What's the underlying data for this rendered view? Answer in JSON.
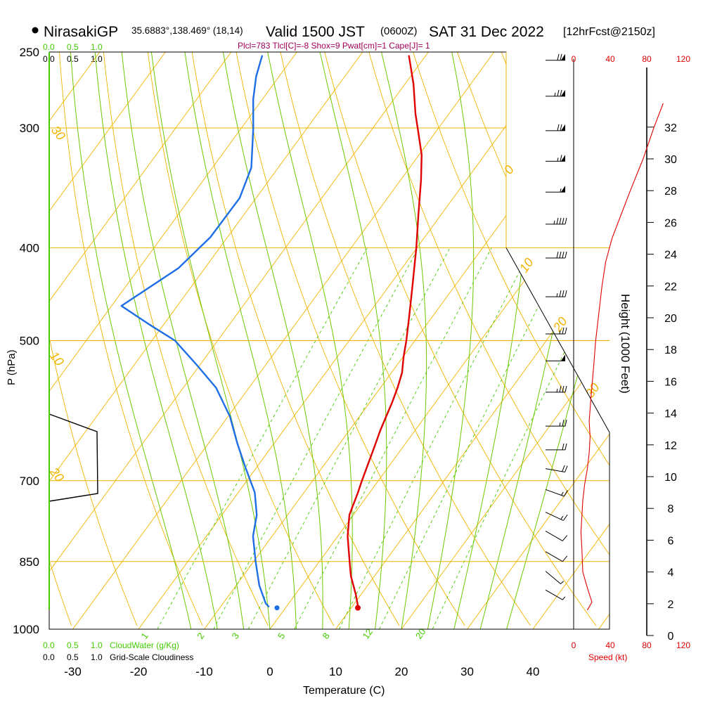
{
  "colors": {
    "orange": "#f0b400",
    "green": "#6cc800",
    "lightgreen": "#44cc00",
    "red": "#e00000",
    "blue": "#1e6ee6",
    "maroon": "#a0005a",
    "black": "#000000"
  },
  "header": {
    "station": "NirasakiGP",
    "coords": "35.6883°,138.469° (18,14)",
    "valid_prefix": "Valid 1500 JST",
    "valid_z": "(0600Z)",
    "valid_date": "SAT 31 Dec 2022",
    "forecast": "[12hrFcst@2150z]",
    "indices": "Plcl=783 Tlcl[C]=-8 Shox=9 Pwat[cm]=1 Cape[J]= 1"
  },
  "labels": {
    "pressure_axis": "P (hPa)",
    "temperature_axis": "Temperature (C)",
    "height_axis": "Height (1000 Feet)",
    "cloudwater": "CloudWater (g/Kg)",
    "cloudiness": "Grid-Scale Cloudiness",
    "speed": "Speed (kt)",
    "cw_ticks": [
      "0.0",
      "0.5",
      "1.0"
    ],
    "cloud_ticks": [
      "0.0",
      "0.5",
      "1.0"
    ]
  },
  "chart_data": {
    "type": "skew-t",
    "pressure_levels": [
      250,
      300,
      400,
      500,
      700,
      850,
      1000
    ],
    "temperature_ticks": [
      -30,
      -20,
      -10,
      0,
      10,
      20,
      30,
      40
    ],
    "height_ticks_kft": [
      0,
      2,
      4,
      6,
      8,
      10,
      12,
      14,
      16,
      18,
      20,
      22,
      24,
      26,
      28,
      30,
      32
    ],
    "speed_ticks_kt": [
      0,
      40,
      80,
      120
    ],
    "isotherm_labels": [
      -30,
      -20,
      -10,
      0,
      10,
      20,
      30
    ],
    "mixing_ratio_labels": [
      "1",
      "2",
      "3",
      "5",
      "8",
      "12",
      "20"
    ],
    "temperature_profile": [
      {
        "p": 949,
        "t": 11.0
      },
      {
        "p": 920,
        "t": 9.2
      },
      {
        "p": 880,
        "t": 6.4
      },
      {
        "p": 850,
        "t": 4.6
      },
      {
        "p": 800,
        "t": 1.5
      },
      {
        "p": 760,
        "t": -0.6
      },
      {
        "p": 720,
        "t": -1.8
      },
      {
        "p": 700,
        "t": -2.5
      },
      {
        "p": 650,
        "t": -4.2
      },
      {
        "p": 620,
        "t": -5.3
      },
      {
        "p": 580,
        "t": -6.6
      },
      {
        "p": 560,
        "t": -7.4
      },
      {
        "p": 540,
        "t": -8.4
      },
      {
        "p": 520,
        "t": -9.9
      },
      {
        "p": 500,
        "t": -11.3
      },
      {
        "p": 470,
        "t": -13.7
      },
      {
        "p": 440,
        "t": -16.3
      },
      {
        "p": 400,
        "t": -20.1
      },
      {
        "p": 370,
        "t": -23.4
      },
      {
        "p": 340,
        "t": -26.9
      },
      {
        "p": 320,
        "t": -29.6
      },
      {
        "p": 300,
        "t": -33.2
      },
      {
        "p": 290,
        "t": -35.1
      },
      {
        "p": 270,
        "t": -38.7
      },
      {
        "p": 252,
        "t": -42.6
      }
    ],
    "dewpoint_profile": [
      {
        "p": 948,
        "t": -2.6
      },
      {
        "p": 940,
        "t": -3.5
      },
      {
        "p": 900,
        "t": -6.5
      },
      {
        "p": 850,
        "t": -9.7
      },
      {
        "p": 800,
        "t": -12.9
      },
      {
        "p": 760,
        "t": -14.7
      },
      {
        "p": 720,
        "t": -17.5
      },
      {
        "p": 680,
        "t": -21.5
      },
      {
        "p": 640,
        "t": -25.6
      },
      {
        "p": 600,
        "t": -29.7
      },
      {
        "p": 560,
        "t": -35.0
      },
      {
        "p": 530,
        "t": -40.5
      },
      {
        "p": 500,
        "t": -46.5
      },
      {
        "p": 480,
        "t": -52.5
      },
      {
        "p": 460,
        "t": -58.5
      },
      {
        "p": 420,
        "t": -54.0
      },
      {
        "p": 390,
        "t": -52.6
      },
      {
        "p": 355,
        "t": -52.5
      },
      {
        "p": 330,
        "t": -54.1
      },
      {
        "p": 300,
        "t": -58.2
      },
      {
        "p": 280,
        "t": -61.4
      },
      {
        "p": 265,
        "t": -63.5
      },
      {
        "p": 252,
        "t": -64.9
      }
    ],
    "surface": {
      "p": 950,
      "t": 11.0,
      "td": -1.3
    },
    "cloudwater_gkg": [],
    "cloud_fraction": [
      {
        "p": 640,
        "value": 0.0
      },
      {
        "p": 660,
        "value": 1.0
      },
      {
        "p": 720,
        "value": 1.0
      },
      {
        "p": 740,
        "value": 0.0
      }
    ],
    "wind_profile_kt": [
      {
        "kft": 1.6,
        "speed": 15
      },
      {
        "kft": 2.1,
        "speed": 20
      },
      {
        "kft": 3.0,
        "speed": 15
      },
      {
        "kft": 4.0,
        "speed": 10
      },
      {
        "kft": 5.5,
        "speed": 9
      },
      {
        "kft": 6.5,
        "speed": 8
      },
      {
        "kft": 7.5,
        "speed": 9
      },
      {
        "kft": 8.5,
        "speed": 10
      },
      {
        "kft": 9.5,
        "speed": 12
      },
      {
        "kft": 10.5,
        "speed": 15
      },
      {
        "kft": 11.5,
        "speed": 17
      },
      {
        "kft": 12.5,
        "speed": 18
      },
      {
        "kft": 13.5,
        "speed": 17
      },
      {
        "kft": 15.0,
        "speed": 19
      },
      {
        "kft": 17.0,
        "speed": 22
      },
      {
        "kft": 18.5,
        "speed": 24
      },
      {
        "kft": 20.0,
        "speed": 27
      },
      {
        "kft": 22.0,
        "speed": 31
      },
      {
        "kft": 23.5,
        "speed": 35
      },
      {
        "kft": 25.0,
        "speed": 42
      },
      {
        "kft": 26.5,
        "speed": 52
      },
      {
        "kft": 28.0,
        "speed": 62
      },
      {
        "kft": 30.0,
        "speed": 76
      },
      {
        "kft": 32.0,
        "speed": 88
      },
      {
        "kft": 33.5,
        "speed": 98
      }
    ],
    "wind_barbs": [
      {
        "p": 255,
        "dir": 270,
        "speed": 70
      },
      {
        "p": 278,
        "dir": 270,
        "speed": 75
      },
      {
        "p": 302,
        "dir": 270,
        "speed": 70
      },
      {
        "p": 325,
        "dir": 270,
        "speed": 65
      },
      {
        "p": 350,
        "dir": 270,
        "speed": 55
      },
      {
        "p": 378,
        "dir": 270,
        "speed": 45
      },
      {
        "p": 410,
        "dir": 270,
        "speed": 40
      },
      {
        "p": 450,
        "dir": 270,
        "speed": 35
      },
      {
        "p": 492,
        "dir": 270,
        "speed": 28
      },
      {
        "p": 525,
        "dir": 270,
        "speed": 50
      },
      {
        "p": 566,
        "dir": 270,
        "speed": 35
      },
      {
        "p": 614,
        "dir": 270,
        "speed": 25
      },
      {
        "p": 650,
        "dir": 270,
        "speed": 20
      },
      {
        "p": 680,
        "dir": 280,
        "speed": 20
      },
      {
        "p": 715,
        "dir": 290,
        "speed": 18
      },
      {
        "p": 755,
        "dir": 295,
        "speed": 15
      },
      {
        "p": 790,
        "dir": 300,
        "speed": 12
      },
      {
        "p": 830,
        "dir": 300,
        "speed": 10
      },
      {
        "p": 870,
        "dir": 310,
        "speed": 8
      },
      {
        "p": 910,
        "dir": 300,
        "speed": 5
      }
    ]
  }
}
